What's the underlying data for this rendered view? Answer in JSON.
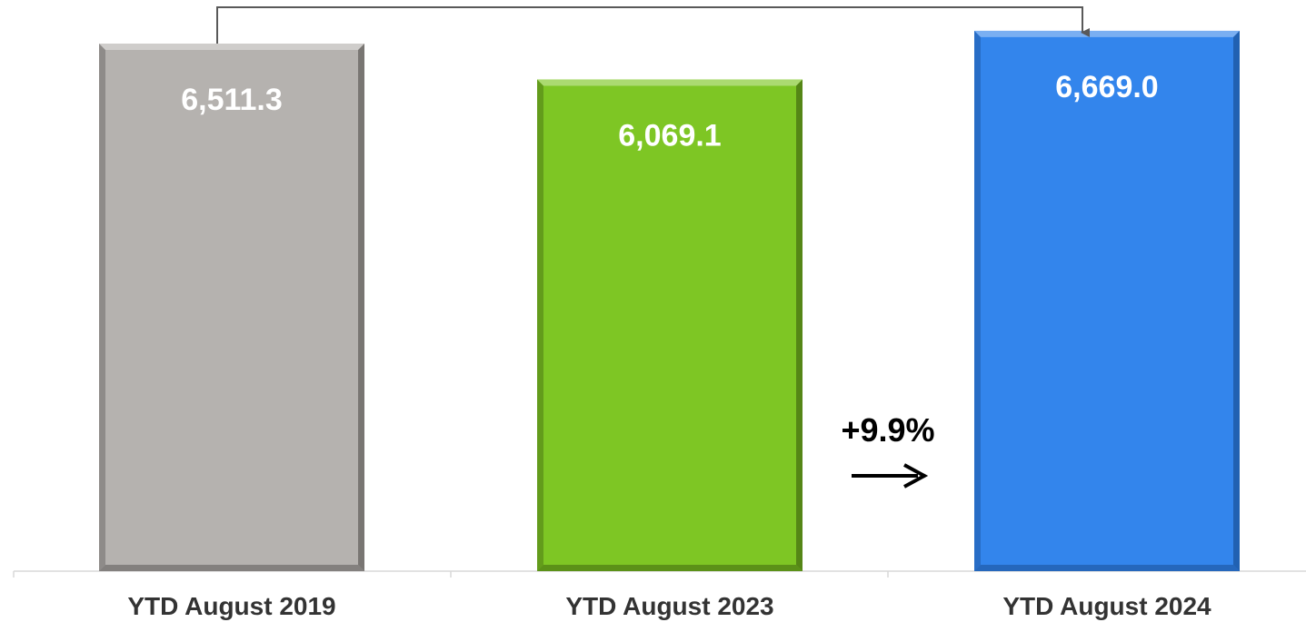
{
  "chart_data": {
    "type": "bar",
    "categories": [
      "YTD August 2019",
      "YTD August 2023",
      "YTD August 2024"
    ],
    "values": [
      6511.3,
      6069.1,
      6669.0
    ],
    "value_labels": [
      "6,511.3",
      "6,069.1",
      "6,669.0"
    ],
    "colors": [
      "#b5b2af",
      "#7ec624",
      "#3385ec"
    ],
    "edge_colors": [
      "#6e6b69",
      "#4d7a14",
      "#1f5aa8"
    ],
    "title": "",
    "xlabel": "",
    "ylabel": "",
    "ylim": [
      0,
      7000
    ],
    "grid": false,
    "legend": "none",
    "annotations": [
      {
        "text": "+9.9%",
        "from": "YTD August 2023",
        "to": "YTD August 2024"
      }
    ],
    "connector": {
      "from": "YTD August 2019",
      "to": "YTD August 2024"
    }
  }
}
